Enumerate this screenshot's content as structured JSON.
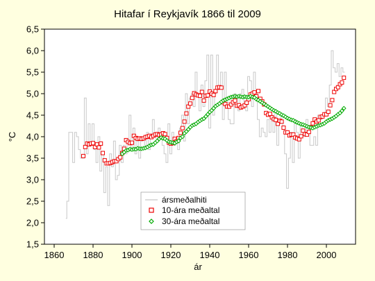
{
  "chart_data": {
    "type": "line",
    "title": "Hitafar í Reykjavík 1866 til 2009",
    "xlabel": "ár",
    "ylabel": "°C",
    "xlim": [
      1855,
      2015
    ],
    "ylim": [
      1.5,
      6.5
    ],
    "xticks": [
      1860,
      1880,
      1900,
      1920,
      1940,
      1960,
      1980,
      2000
    ],
    "yticks": [
      "1,5",
      "2,0",
      "2,5",
      "3,0",
      "3,5",
      "4,0",
      "4,5",
      "5,0",
      "5,5",
      "6,0",
      "6,5"
    ],
    "grid": false,
    "legend_position": "bottom-center",
    "series": [
      {
        "name": "ársmeðalhiti",
        "style": "line",
        "color": "#c8c8c8",
        "x": [
          1866,
          1867,
          1868,
          1869,
          1870,
          1871,
          1872,
          1873,
          1874,
          1875,
          1876,
          1877,
          1878,
          1879,
          1880,
          1881,
          1882,
          1883,
          1884,
          1885,
          1886,
          1887,
          1888,
          1889,
          1890,
          1891,
          1892,
          1893,
          1894,
          1895,
          1896,
          1897,
          1898,
          1899,
          1900,
          1901,
          1902,
          1903,
          1904,
          1905,
          1906,
          1907,
          1908,
          1909,
          1910,
          1911,
          1912,
          1913,
          1914,
          1915,
          1916,
          1917,
          1918,
          1919,
          1920,
          1921,
          1922,
          1923,
          1924,
          1925,
          1926,
          1927,
          1928,
          1929,
          1930,
          1931,
          1932,
          1933,
          1934,
          1935,
          1936,
          1937,
          1938,
          1939,
          1940,
          1941,
          1942,
          1943,
          1944,
          1945,
          1946,
          1947,
          1948,
          1949,
          1950,
          1951,
          1952,
          1953,
          1954,
          1955,
          1956,
          1957,
          1958,
          1959,
          1960,
          1961,
          1962,
          1963,
          1964,
          1965,
          1966,
          1967,
          1968,
          1969,
          1970,
          1971,
          1972,
          1973,
          1974,
          1975,
          1976,
          1977,
          1978,
          1979,
          1980,
          1981,
          1982,
          1983,
          1984,
          1985,
          1986,
          1987,
          1988,
          1989,
          1990,
          1991,
          1992,
          1993,
          1994,
          1995,
          1996,
          1997,
          1998,
          1999,
          2000,
          2001,
          2002,
          2003,
          2004,
          2005,
          2006,
          2007,
          2008,
          2009
        ],
        "values": [
          2.1,
          2.5,
          4.1,
          4.1,
          3.4,
          4.1,
          4.0,
          3.7,
          3.5,
          3.5,
          4.9,
          3.6,
          4.3,
          3.8,
          4.3,
          3.7,
          3.4,
          4.0,
          3.2,
          3.6,
          2.7,
          3.3,
          2.4,
          3.6,
          3.3,
          3.9,
          3.0,
          3.1,
          3.8,
          3.4,
          3.8,
          3.6,
          3.9,
          4.5,
          3.7,
          4.2,
          3.6,
          3.9,
          3.5,
          3.9,
          4.0,
          3.8,
          4.1,
          3.7,
          4.0,
          4.4,
          4.0,
          3.9,
          4.2,
          4.1,
          3.8,
          3.6,
          3.4,
          4.3,
          3.6,
          4.1,
          3.8,
          3.9,
          3.7,
          4.2,
          4.5,
          3.9,
          5.0,
          4.3,
          4.9,
          5.0,
          4.7,
          5.5,
          5.0,
          4.6,
          5.2,
          4.7,
          5.3,
          5.9,
          4.2,
          5.9,
          4.5,
          5.0,
          5.9,
          5.1,
          5.5,
          4.4,
          5.5,
          4.8,
          4.4,
          4.3,
          4.3,
          5.0,
          4.9,
          4.6,
          5.0,
          5.1,
          4.8,
          4.6,
          5.4,
          5.3,
          4.7,
          5.5,
          5.1,
          4.4,
          4.0,
          4.2,
          4.1,
          4.0,
          4.4,
          4.1,
          4.5,
          4.1,
          4.6,
          3.8,
          4.3,
          4.5,
          4.2,
          3.6,
          2.8,
          3.5,
          4.1,
          3.4,
          4.4,
          4.1,
          3.5,
          4.3,
          4.1,
          4.0,
          4.4,
          4.2,
          3.8,
          3.8,
          4.0,
          3.8,
          4.5,
          4.4,
          4.5,
          4.5,
          4.9,
          4.7,
          5.2,
          6.0,
          5.6,
          5.5,
          5.7,
          5.4,
          5.6,
          5.5
        ]
      },
      {
        "name": "10-ára meðaltal",
        "style": "square",
        "color": "#ee0000",
        "x": [
          1875,
          1876,
          1877,
          1878,
          1879,
          1880,
          1881,
          1882,
          1883,
          1884,
          1885,
          1886,
          1887,
          1888,
          1889,
          1890,
          1891,
          1892,
          1893,
          1894,
          1895,
          1896,
          1897,
          1898,
          1899,
          1900,
          1901,
          1902,
          1903,
          1904,
          1905,
          1906,
          1907,
          1908,
          1909,
          1910,
          1911,
          1912,
          1913,
          1914,
          1915,
          1916,
          1917,
          1918,
          1919,
          1920,
          1921,
          1922,
          1923,
          1924,
          1925,
          1926,
          1927,
          1928,
          1929,
          1930,
          1931,
          1932,
          1933,
          1934,
          1935,
          1936,
          1937,
          1938,
          1939,
          1940,
          1941,
          1942,
          1943,
          1944,
          1945,
          1946,
          1947,
          1948,
          1949,
          1950,
          1951,
          1952,
          1953,
          1954,
          1955,
          1956,
          1957,
          1958,
          1959,
          1960,
          1961,
          1962,
          1963,
          1964,
          1965,
          1966,
          1967,
          1968,
          1969,
          1970,
          1971,
          1972,
          1973,
          1974,
          1975,
          1976,
          1977,
          1978,
          1979,
          1980,
          1981,
          1982,
          1983,
          1984,
          1985,
          1986,
          1987,
          1988,
          1989,
          1990,
          1991,
          1992,
          1993,
          1994,
          1995,
          1996,
          1997,
          1998,
          1999,
          2000,
          2001,
          2002,
          2003,
          2004,
          2005,
          2006,
          2007,
          2008,
          2009
        ],
        "values": [
          3.55,
          3.76,
          3.84,
          3.82,
          3.84,
          3.85,
          3.76,
          3.82,
          3.75,
          3.84,
          3.62,
          3.45,
          3.38,
          3.38,
          3.39,
          3.41,
          3.43,
          3.43,
          3.48,
          3.52,
          3.62,
          3.72,
          3.92,
          3.88,
          3.85,
          3.86,
          4.02,
          3.97,
          3.95,
          3.96,
          3.95,
          3.96,
          3.99,
          4.0,
          4.02,
          3.99,
          4.02,
          4.05,
          4.06,
          4.04,
          4.05,
          4.08,
          4.06,
          3.97,
          3.86,
          3.84,
          3.85,
          3.95,
          3.9,
          3.97,
          4.09,
          4.2,
          4.35,
          4.54,
          4.7,
          4.77,
          4.9,
          5.01,
          4.98,
          4.96,
          4.95,
          5.04,
          4.84,
          4.95,
          4.96,
          5.05,
          5.0,
          4.97,
          5.06,
          5.14,
          5.15,
          5.14,
          4.8,
          4.76,
          4.7,
          4.7,
          4.75,
          4.8,
          4.84,
          4.72,
          4.73,
          4.68,
          4.7,
          4.73,
          4.79,
          4.87,
          4.98,
          5.0,
          5.03,
          4.94,
          5.06,
          4.88,
          4.82,
          4.75,
          4.55,
          4.51,
          4.53,
          4.45,
          4.41,
          4.39,
          4.3,
          4.37,
          4.35,
          4.21,
          4.1,
          4.1,
          4.03,
          4.05,
          4.05,
          3.98,
          3.96,
          3.94,
          4.01,
          4.14,
          4.06,
          4.05,
          4.11,
          4.22,
          4.31,
          4.4,
          4.35,
          4.38,
          4.46,
          4.47,
          4.52,
          4.52,
          4.58,
          4.73,
          4.85,
          5.04,
          5.11,
          5.15,
          5.22,
          5.26,
          5.37
        ]
      },
      {
        "name": "30-ára meðaltal",
        "style": "diamond",
        "color": "#00aa00",
        "x": [
          1895,
          1896,
          1897,
          1898,
          1899,
          1900,
          1901,
          1902,
          1903,
          1904,
          1905,
          1906,
          1907,
          1908,
          1909,
          1910,
          1911,
          1912,
          1913,
          1914,
          1915,
          1916,
          1917,
          1918,
          1919,
          1920,
          1921,
          1922,
          1923,
          1924,
          1925,
          1926,
          1927,
          1928,
          1929,
          1930,
          1931,
          1932,
          1933,
          1934,
          1935,
          1936,
          1937,
          1938,
          1939,
          1940,
          1941,
          1942,
          1943,
          1944,
          1945,
          1946,
          1947,
          1948,
          1949,
          1950,
          1951,
          1952,
          1953,
          1954,
          1955,
          1956,
          1957,
          1958,
          1959,
          1960,
          1961,
          1962,
          1963,
          1964,
          1965,
          1966,
          1967,
          1968,
          1969,
          1970,
          1971,
          1972,
          1973,
          1974,
          1975,
          1976,
          1977,
          1978,
          1979,
          1980,
          1981,
          1982,
          1983,
          1984,
          1985,
          1986,
          1987,
          1988,
          1989,
          1990,
          1991,
          1992,
          1993,
          1994,
          1995,
          1996,
          1997,
          1998,
          1999,
          2000,
          2001,
          2002,
          2003,
          2004,
          2005,
          2006,
          2007,
          2008,
          2009
        ],
        "values": [
          3.6,
          3.64,
          3.68,
          3.69,
          3.71,
          3.7,
          3.71,
          3.71,
          3.73,
          3.72,
          3.72,
          3.73,
          3.74,
          3.76,
          3.79,
          3.81,
          3.82,
          3.86,
          3.9,
          3.95,
          3.98,
          3.96,
          3.95,
          3.91,
          3.88,
          3.87,
          3.86,
          3.85,
          3.88,
          3.9,
          3.97,
          4.0,
          4.08,
          4.12,
          4.17,
          4.22,
          4.26,
          4.28,
          4.3,
          4.34,
          4.37,
          4.4,
          4.42,
          4.47,
          4.52,
          4.57,
          4.61,
          4.66,
          4.71,
          4.74,
          4.77,
          4.81,
          4.84,
          4.86,
          4.88,
          4.9,
          4.92,
          4.93,
          4.94,
          4.93,
          4.94,
          4.93,
          4.92,
          4.93,
          4.92,
          4.92,
          4.94,
          4.92,
          4.91,
          4.87,
          4.85,
          4.82,
          4.79,
          4.76,
          4.73,
          4.7,
          4.67,
          4.64,
          4.61,
          4.59,
          4.56,
          4.54,
          4.51,
          4.49,
          4.46,
          4.43,
          4.41,
          4.39,
          4.38,
          4.35,
          4.33,
          4.31,
          4.29,
          4.28,
          4.26,
          4.24,
          4.22,
          4.21,
          4.2,
          4.22,
          4.24,
          4.26,
          4.27,
          4.29,
          4.31,
          4.35,
          4.38,
          4.4,
          4.42,
          4.45,
          4.48,
          4.52,
          4.55,
          4.6,
          4.66
        ]
      }
    ]
  }
}
